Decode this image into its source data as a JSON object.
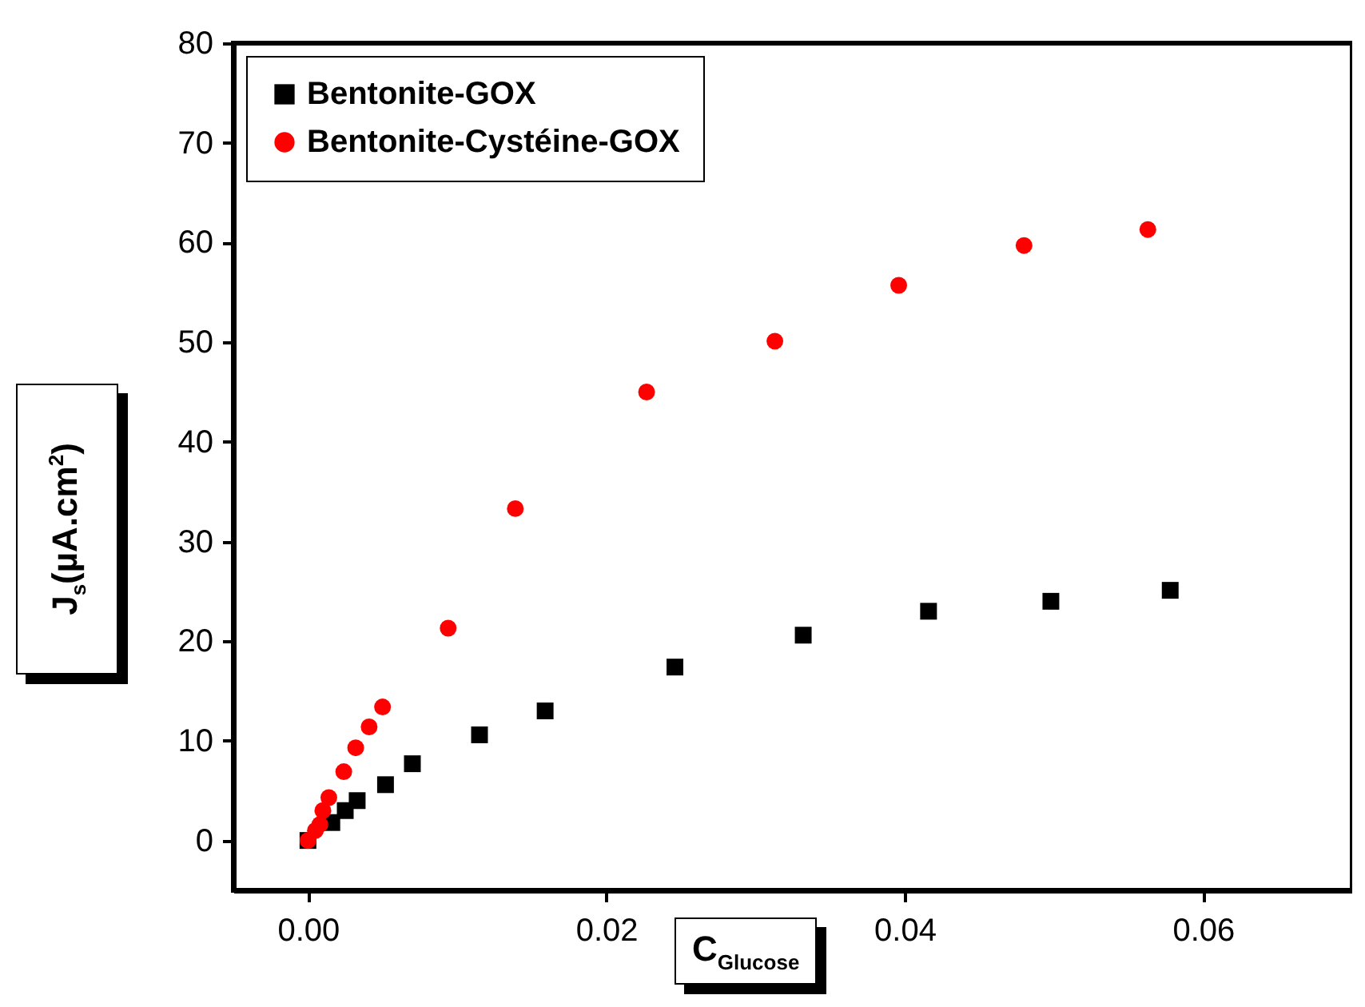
{
  "chart_data": {
    "type": "scatter",
    "xlabel": "C$_{Glucose}$",
    "ylabel": "J$_{s}$(µA.cm$^{2}$)",
    "xlim": [
      -0.005,
      0.07
    ],
    "ylim": [
      -5,
      80
    ],
    "xticks": [
      {
        "value": 0,
        "label": "0.00"
      },
      {
        "value": 0.02,
        "label": "0.02"
      },
      {
        "value": 0.04,
        "label": "0.04"
      },
      {
        "value": 0.06,
        "label": "0.06"
      }
    ],
    "yticks": [
      0,
      10,
      20,
      30,
      40,
      50,
      60,
      70,
      80
    ],
    "grid": false,
    "legend": "top left",
    "series": [
      {
        "name": "Bentonite-GOX",
        "color": "#000000",
        "marker": "square",
        "x": [
          0,
          0.0016,
          0.0025,
          0.0033,
          0.0052,
          0.007,
          0.0115,
          0.0159,
          0.0246,
          0.0332,
          0.0416,
          0.0498,
          0.0578
        ],
        "values": [
          0,
          1.8,
          3.0,
          4.0,
          5.6,
          7.7,
          10.6,
          13.0,
          17.4,
          20.6,
          23.0,
          24.0,
          25.1
        ]
      },
      {
        "name": "Bentonite-Cystéine-GOX",
        "color": "#ff0000",
        "marker": "circle",
        "x": [
          0,
          0.0005,
          0.0008,
          0.001,
          0.0014,
          0.0024,
          0.0032,
          0.0041,
          0.005,
          0.0094,
          0.0139,
          0.0227,
          0.0313,
          0.0396,
          0.048,
          0.0563
        ],
        "values": [
          0,
          1.0,
          1.6,
          3.0,
          4.3,
          6.9,
          9.3,
          11.4,
          13.4,
          21.3,
          33.3,
          45.0,
          50.1,
          55.7,
          59.7,
          61.3
        ]
      }
    ]
  }
}
